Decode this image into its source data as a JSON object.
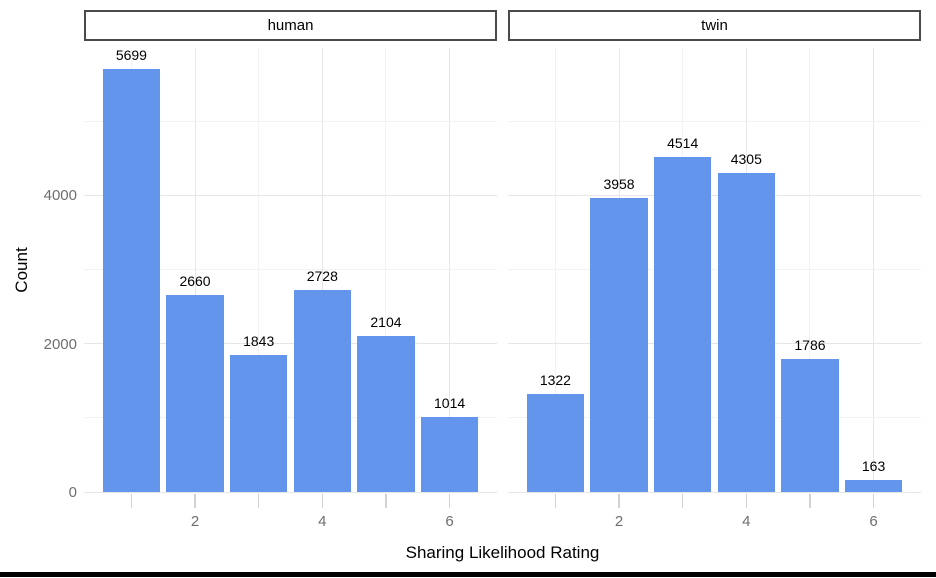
{
  "chart_data": {
    "type": "bar",
    "title": "",
    "xlabel": "Sharing Likelihood Rating",
    "ylabel": "Count",
    "facet_labels": [
      "human",
      "twin"
    ],
    "categories": [
      1,
      2,
      3,
      4,
      5,
      6
    ],
    "series": [
      {
        "name": "human",
        "values": [
          5699,
          2660,
          1843,
          2728,
          2104,
          1014
        ]
      },
      {
        "name": "twin",
        "values": [
          1322,
          3958,
          4514,
          4305,
          1786,
          163
        ]
      }
    ],
    "value_labels": true,
    "bar_color": "#6495ED",
    "bar_width": 0.9,
    "xlim": [
      0.255,
      6.745
    ],
    "ylim": [
      0,
      5984
    ],
    "x_major_ticks": [
      2,
      4,
      6
    ],
    "x_minor_ticks": [
      1,
      3,
      5
    ],
    "x_tick_marks": [
      1,
      2,
      3,
      4,
      5,
      6
    ],
    "y_major_ticks": [
      0,
      2000,
      4000
    ],
    "y_minor_ticks": [
      1000,
      3000,
      5000
    ],
    "grid": true,
    "legend": "none",
    "facet_strip_position": "top"
  }
}
